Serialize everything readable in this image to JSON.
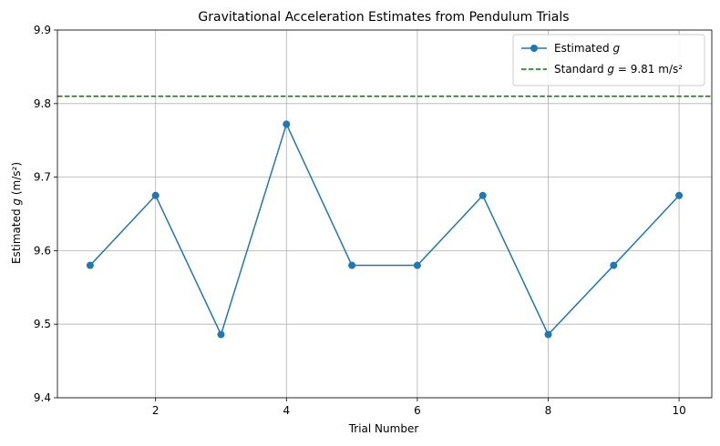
{
  "chart_data": {
    "type": "line",
    "title": "Gravitational Acceleration Estimates from Pendulum Trials",
    "xlabel": "Trial Number",
    "ylabel_prefix": "Estimated ",
    "ylabel_var": "g",
    "ylabel_suffix": " (m/s²)",
    "xlim": [
      0.5,
      10.5
    ],
    "ylim": [
      9.4,
      9.9
    ],
    "xticks": [
      2,
      4,
      6,
      8,
      10
    ],
    "yticks": [
      9.4,
      9.5,
      9.6,
      9.7,
      9.8,
      9.9
    ],
    "xtick_labels": [
      "2",
      "4",
      "6",
      "8",
      "10"
    ],
    "ytick_labels": [
      "9.4",
      "9.5",
      "9.6",
      "9.7",
      "9.8",
      "9.9"
    ],
    "grid": true,
    "legend_position": "top-right",
    "series": [
      {
        "name_prefix": "Estimated ",
        "name_var": "g",
        "color": "#1f77b4",
        "x": [
          1,
          2,
          3,
          4,
          5,
          6,
          7,
          8,
          9,
          10
        ],
        "y": [
          9.58,
          9.675,
          9.486,
          9.772,
          9.58,
          9.58,
          9.675,
          9.486,
          9.58,
          9.675
        ]
      }
    ],
    "reference_line": {
      "name_prefix": "Standard ",
      "name_var": "g",
      "name_suffix": " = 9.81 m/s²",
      "y": 9.81,
      "color": "#008000",
      "style": "dashed"
    }
  }
}
